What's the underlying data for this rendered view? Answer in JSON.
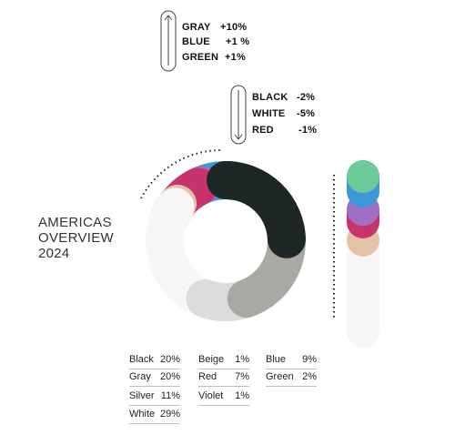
{
  "title_lines": [
    "AMERICAS",
    "OVERVIEW",
    "2024"
  ],
  "trends_up": [
    {
      "label": "GRAY",
      "change": "+10%"
    },
    {
      "label": "BLUE",
      "change": "+1 %"
    },
    {
      "label": "GREEN",
      "change": "+1%"
    }
  ],
  "trends_down": [
    {
      "label": "BLACK",
      "change": "-2%"
    },
    {
      "label": "WHITE",
      "change": "-5%"
    },
    {
      "label": "RED",
      "change": "-1%"
    }
  ],
  "legend": [
    [
      {
        "label": "Black",
        "value": "20%"
      },
      {
        "label": "Gray",
        "value": "20%"
      },
      {
        "label": "Silver",
        "value": "11%"
      },
      {
        "label": "White",
        "value": "29%"
      }
    ],
    [
      {
        "label": "Beige",
        "value": "1%"
      },
      {
        "label": "Red",
        "value": "7%"
      },
      {
        "label": "Violet",
        "value": "1%"
      }
    ],
    [
      {
        "label": "Blue",
        "value": "9%"
      },
      {
        "label": "Green",
        "value": "2%"
      }
    ]
  ],
  "colors": {
    "black": "#1f2626",
    "gray": "#a9a9a4",
    "silver": "#dcdcdc",
    "white": "#f7f7f7",
    "beige": "#e3c2a6",
    "red": "#c7336d",
    "violet": "#a06fc4",
    "blue": "#3f97d8",
    "green": "#6ccb98"
  },
  "chart_data": {
    "type": "pie",
    "variant": "donut",
    "categories": [
      "Black",
      "Gray",
      "Silver",
      "White",
      "Beige",
      "Red",
      "Violet",
      "Blue",
      "Green"
    ],
    "values": [
      20,
      20,
      11,
      29,
      1,
      7,
      1,
      9,
      2
    ],
    "unit": "%"
  }
}
